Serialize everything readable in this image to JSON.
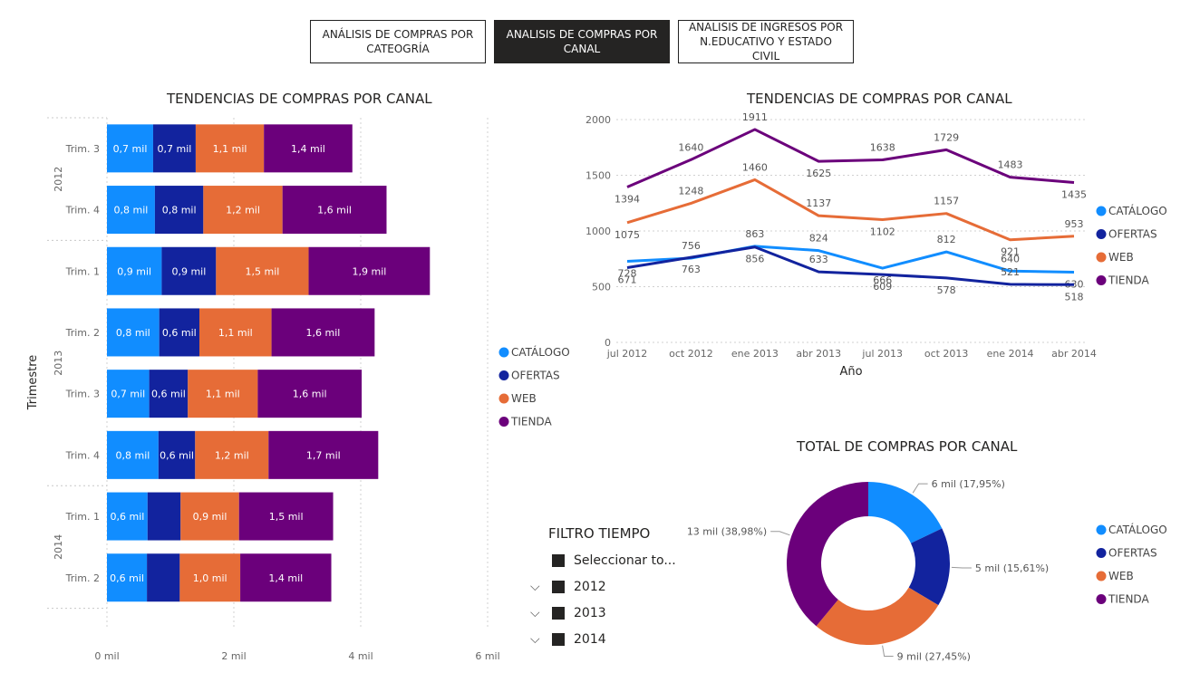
{
  "tabs": [
    {
      "label": "ANÁLISIS DE COMPRAS POR CATEOGRÍA",
      "active": false
    },
    {
      "label": "ANALISIS DE COMPRAS POR CANAL",
      "active": true
    },
    {
      "label": "ANALISIS DE INGRESOS POR N.EDUCATIVO Y ESTADO CIVIL",
      "active": false
    }
  ],
  "colors": {
    "CATÁLOGO": "#118DFF",
    "OFERTAS": "#12239E",
    "WEB": "#E66C37",
    "TIENDA": "#6B007B"
  },
  "filter": {
    "title": "FILTRO TIEMPO",
    "select_all": "Seleccionar to...",
    "years": [
      "2012",
      "2013",
      "2014"
    ]
  },
  "chart_data": [
    {
      "type": "bar",
      "orientation": "horizontal-stacked",
      "title": "TENDENCIAS DE COMPRAS POR CANAL",
      "ylabel": "Trimestre",
      "xlim": [
        0,
        6000
      ],
      "xticks": [
        "0 mil",
        "2 mil",
        "4 mil",
        "6 mil"
      ],
      "groups": [
        {
          "year": "2012",
          "quarters": [
            "Trim. 3",
            "Trim. 4"
          ]
        },
        {
          "year": "2013",
          "quarters": [
            "Trim. 1",
            "Trim. 2",
            "Trim. 3",
            "Trim. 4"
          ]
        },
        {
          "year": "2014",
          "quarters": [
            "Trim. 1",
            "Trim. 2"
          ]
        }
      ],
      "categories": [
        "Trim. 3",
        "Trim. 4",
        "Trim. 1",
        "Trim. 2",
        "Trim. 3",
        "Trim. 4",
        "Trim. 1",
        "Trim. 2"
      ],
      "series": [
        {
          "name": "CATÁLOGO",
          "values": [
            728,
            756,
            863,
            824,
            666,
            812,
            640,
            630
          ],
          "labels": [
            "0,7 mil",
            "0,8 mil",
            "0,9 mil",
            "0,8 mil",
            "0,7 mil",
            "0,8 mil",
            "0,6 mil",
            "0,6 mil"
          ]
        },
        {
          "name": "OFERTAS",
          "values": [
            671,
            763,
            856,
            633,
            609,
            578,
            521,
            518
          ],
          "labels": [
            "0,7 mil",
            "0,8 mil",
            "0,9 mil",
            "0,6 mil",
            "0,6 mil",
            "0,6 mil",
            "",
            ""
          ]
        },
        {
          "name": "WEB",
          "values": [
            1075,
            1248,
            1460,
            1137,
            1102,
            1157,
            921,
            953
          ],
          "labels": [
            "1,1 mil",
            "1,2 mil",
            "1,5 mil",
            "1,1 mil",
            "1,1 mil",
            "1,2 mil",
            "0,9 mil",
            "1,0 mil"
          ]
        },
        {
          "name": "TIENDA",
          "values": [
            1394,
            1640,
            1911,
            1625,
            1638,
            1729,
            1483,
            1435
          ],
          "labels": [
            "1,4 mil",
            "1,6 mil",
            "1,9 mil",
            "1,6 mil",
            "1,6 mil",
            "1,7 mil",
            "1,5 mil",
            "1,4 mil"
          ]
        }
      ],
      "legend": "right"
    },
    {
      "type": "line",
      "title": "TENDENCIAS DE COMPRAS POR CANAL",
      "xlabel": "Año",
      "x": [
        "jul 2012",
        "oct 2012",
        "ene 2013",
        "abr 2013",
        "jul 2013",
        "oct 2013",
        "ene 2014",
        "abr 2014"
      ],
      "ylim": [
        0,
        2000
      ],
      "yticks": [
        0,
        500,
        1000,
        1500,
        2000
      ],
      "series": [
        {
          "name": "CATÁLOGO",
          "values": [
            728,
            756,
            863,
            824,
            666,
            812,
            640,
            630
          ]
        },
        {
          "name": "OFERTAS",
          "values": [
            671,
            763,
            856,
            633,
            609,
            578,
            521,
            518
          ]
        },
        {
          "name": "WEB",
          "values": [
            1075,
            1248,
            1460,
            1137,
            1102,
            1157,
            921,
            953
          ]
        },
        {
          "name": "TIENDA",
          "values": [
            1394,
            1640,
            1911,
            1625,
            1638,
            1729,
            1483,
            1435
          ]
        }
      ],
      "legend": "right"
    },
    {
      "type": "pie",
      "variant": "donut",
      "title": "TOTAL DE COMPRAS POR CANAL",
      "slices": [
        {
          "name": "CATÁLOGO",
          "value": 17.95,
          "label": "6 mil (17,95%)"
        },
        {
          "name": "OFERTAS",
          "value": 15.61,
          "label": "5 mil (15,61%)"
        },
        {
          "name": "WEB",
          "value": 27.45,
          "label": "9 mil (27,45%)"
        },
        {
          "name": "TIENDA",
          "value": 38.98,
          "label": "13 mil (38,98%)"
        }
      ],
      "legend": "right"
    }
  ]
}
